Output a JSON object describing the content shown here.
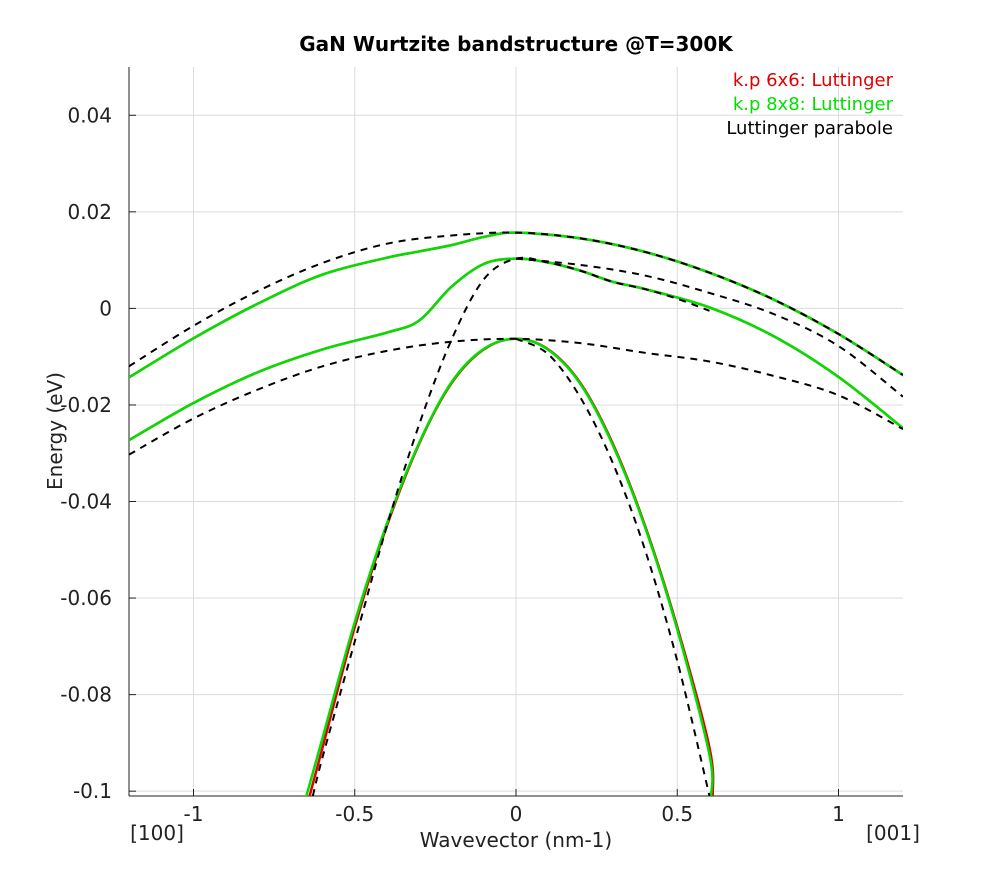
{
  "chart_data": {
    "type": "line",
    "title": "GaN Wurtzite bandstructure @T=300K",
    "xlabel": "Wavevector (nm-1)",
    "ylabel": "Energy (eV)",
    "xlim": [
      -1.2,
      1.2
    ],
    "ylim": [
      -0.101,
      0.05
    ],
    "x_ticks": [
      -1,
      -0.5,
      0,
      0.5,
      1
    ],
    "x_tick_labels": [
      "-1",
      "-0.5",
      "0",
      "0.5",
      "1"
    ],
    "y_ticks": [
      0.04,
      0.02,
      0,
      -0.02,
      -0.04,
      -0.06,
      -0.08,
      -0.1
    ],
    "y_tick_labels": [
      "0.04",
      "0.02",
      "0",
      "-0.02",
      "-0.04",
      "-0.06",
      "-0.08",
      "-0.1"
    ],
    "direction_labels": {
      "left": "[100]",
      "right": "[001]"
    },
    "grid": true,
    "legend_position": "top-right",
    "legend": [
      {
        "label": "k.p 6x6: Luttinger",
        "color": "#e00000"
      },
      {
        "label": "k.p 8x8: Luttinger",
        "color": "#00e000"
      },
      {
        "label": "Luttinger parabole",
        "color": "#000000"
      }
    ],
    "series": [
      {
        "group": "k.p 6x6: Luttinger",
        "color": "#e00000",
        "style": "solid",
        "x": [
          -1.2,
          -1.0,
          -0.8,
          -0.6,
          -0.4,
          -0.3,
          -0.2,
          -0.1,
          0,
          0.2,
          0.4,
          0.6,
          0.8,
          1.0,
          1.2
        ],
        "y": [
          -0.0143,
          -0.0062,
          0.001,
          0.007,
          0.0105,
          0.0118,
          0.0131,
          0.0148,
          0.0157,
          0.0145,
          0.0117,
          0.0074,
          0.0018,
          -0.0053,
          -0.0138
        ]
      },
      {
        "group": "k.p 6x6: Luttinger",
        "color": "#e00000",
        "style": "solid",
        "x": [
          -1.2,
          -1.0,
          -0.8,
          -0.6,
          -0.4,
          -0.3,
          -0.2,
          -0.1,
          0,
          0.1,
          0.2,
          0.3,
          0.4,
          0.6,
          0.8,
          1.0,
          1.2
        ],
        "y": [
          -0.0273,
          -0.0196,
          -0.0132,
          -0.0085,
          -0.005,
          -0.0025,
          0.0045,
          0.0092,
          0.0103,
          0.0095,
          0.0078,
          0.0055,
          0.004,
          0.0002,
          -0.0058,
          -0.0142,
          -0.0248
        ]
      },
      {
        "group": "k.p 6x6: Luttinger",
        "color": "#e00000",
        "style": "solid",
        "x": [
          -0.64,
          -0.6,
          -0.5,
          -0.4,
          -0.3,
          -0.2,
          -0.1,
          0,
          0.1,
          0.2,
          0.3,
          0.4,
          0.5,
          0.6,
          0.61
        ],
        "y": [
          -0.101,
          -0.091,
          -0.066,
          -0.045,
          -0.028,
          -0.0155,
          -0.0085,
          -0.0063,
          -0.0085,
          -0.0155,
          -0.028,
          -0.045,
          -0.066,
          -0.091,
          -0.101
        ]
      },
      {
        "group": "k.p 8x8: Luttinger",
        "color": "#00e000",
        "style": "solid",
        "x": [
          -1.2,
          -1.0,
          -0.8,
          -0.6,
          -0.4,
          -0.3,
          -0.2,
          -0.1,
          0,
          0.2,
          0.4,
          0.6,
          0.8,
          1.0,
          1.2
        ],
        "y": [
          -0.0143,
          -0.0062,
          0.001,
          0.007,
          0.0105,
          0.0118,
          0.0131,
          0.0148,
          0.0157,
          0.0145,
          0.0117,
          0.0074,
          0.0018,
          -0.0053,
          -0.0138
        ]
      },
      {
        "group": "k.p 8x8: Luttinger",
        "color": "#00e000",
        "style": "solid",
        "x": [
          -1.2,
          -1.0,
          -0.8,
          -0.6,
          -0.4,
          -0.3,
          -0.2,
          -0.1,
          0,
          0.1,
          0.2,
          0.3,
          0.4,
          0.6,
          0.8,
          1.0,
          1.2
        ],
        "y": [
          -0.0273,
          -0.0196,
          -0.0132,
          -0.0085,
          -0.005,
          -0.0025,
          0.0045,
          0.0092,
          0.0103,
          0.0095,
          0.0078,
          0.0055,
          0.004,
          0.0002,
          -0.0058,
          -0.0142,
          -0.0248
        ]
      },
      {
        "group": "k.p 8x8: Luttinger",
        "color": "#00e000",
        "style": "solid",
        "x": [
          -0.65,
          -0.6,
          -0.5,
          -0.4,
          -0.3,
          -0.2,
          -0.1,
          0,
          0.1,
          0.2,
          0.3,
          0.4,
          0.5,
          0.6,
          0.605
        ],
        "y": [
          -0.101,
          -0.089,
          -0.065,
          -0.0445,
          -0.0278,
          -0.0153,
          -0.0084,
          -0.0063,
          -0.0086,
          -0.0157,
          -0.0283,
          -0.0453,
          -0.0665,
          -0.0925,
          -0.101
        ]
      },
      {
        "group": "Luttinger parabole",
        "color": "#000000",
        "style": "dashed",
        "x": [
          -1.2,
          -1.0,
          -0.8,
          -0.6,
          -0.4,
          -0.2,
          0,
          0.2,
          0.4,
          0.6,
          0.8,
          1.0,
          1.2
        ],
        "y": [
          -0.012,
          -0.0036,
          0.0036,
          0.0094,
          0.0134,
          0.0151,
          0.0157,
          0.0145,
          0.0117,
          0.0074,
          0.0018,
          -0.0053,
          -0.0138
        ]
      },
      {
        "group": "Luttinger parabole",
        "color": "#000000",
        "style": "dashed",
        "x": [
          -1.2,
          -1.0,
          -0.8,
          -0.6,
          -0.4,
          -0.2,
          0,
          0.2,
          0.4,
          0.6,
          0.8,
          1.0,
          1.2
        ],
        "y": [
          -0.0303,
          -0.0228,
          -0.0168,
          -0.012,
          -0.0088,
          -0.0069,
          -0.0063,
          -0.0072,
          -0.0092,
          -0.011,
          -0.014,
          -0.018,
          -0.025
        ]
      },
      {
        "group": "Luttinger parabole",
        "color": "#000000",
        "style": "dashed",
        "x": [
          -0.63,
          -0.6,
          -0.5,
          -0.4,
          -0.3,
          -0.2,
          -0.1,
          0,
          0.1,
          0.2,
          0.3,
          0.4,
          0.5,
          0.6
        ],
        "y": [
          -0.101,
          -0.093,
          -0.069,
          -0.045,
          -0.024,
          -0.0065,
          0.006,
          0.0103,
          0.0095,
          0.0078,
          0.0055,
          0.004,
          0.002,
          -0.0005
        ]
      },
      {
        "group": "Luttinger parabole",
        "color": "#000000",
        "style": "dashed",
        "x": [
          0.0,
          0.1,
          0.2,
          0.3,
          0.4,
          0.5,
          0.6
        ],
        "y": [
          -0.0063,
          -0.0095,
          -0.0185,
          -0.032,
          -0.05,
          -0.073,
          -0.101
        ]
      },
      {
        "group": "Luttinger parabole",
        "color": "#000000",
        "style": "dashed",
        "x": [
          0.0,
          0.2,
          0.4,
          0.6,
          0.8,
          1.0,
          1.2
        ],
        "y": [
          0.0103,
          0.009,
          0.0068,
          0.0032,
          -0.0012,
          -0.0078,
          -0.0183
        ]
      }
    ]
  }
}
